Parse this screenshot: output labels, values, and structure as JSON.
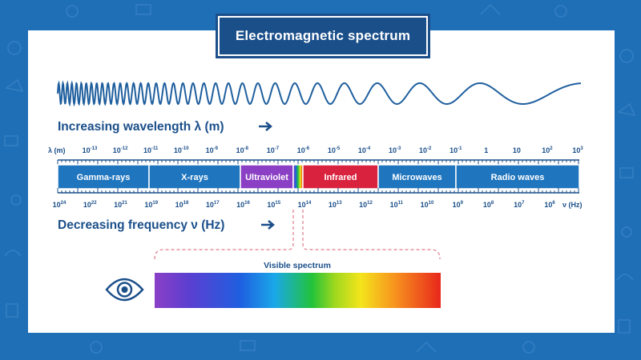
{
  "title": "Electromagnetic spectrum",
  "wavelength_heading": "Increasing wavelength  λ (m)",
  "frequency_heading": "Decreasing frequency  ν (Hz)",
  "wavelength_axis_label": "λ (m)",
  "frequency_axis_label": "ν (Hz)",
  "wavelength_ticks": [
    {
      "base": "10",
      "exp": "-13"
    },
    {
      "base": "10",
      "exp": "-12"
    },
    {
      "base": "10",
      "exp": "-11"
    },
    {
      "base": "10",
      "exp": "-10"
    },
    {
      "base": "10",
      "exp": "-9"
    },
    {
      "base": "10",
      "exp": "-8"
    },
    {
      "base": "10",
      "exp": "-7"
    },
    {
      "base": "10",
      "exp": "-6"
    },
    {
      "base": "10",
      "exp": "-5"
    },
    {
      "base": "10",
      "exp": "-4"
    },
    {
      "base": "10",
      "exp": "-3"
    },
    {
      "base": "10",
      "exp": "-2"
    },
    {
      "base": "10",
      "exp": "-1"
    },
    {
      "base": "1",
      "exp": ""
    },
    {
      "base": "10",
      "exp": ""
    },
    {
      "base": "10",
      "exp": "2"
    },
    {
      "base": "10",
      "exp": "3"
    }
  ],
  "frequency_ticks": [
    {
      "base": "10",
      "exp": "24"
    },
    {
      "base": "10",
      "exp": "22"
    },
    {
      "base": "10",
      "exp": "21"
    },
    {
      "base": "10",
      "exp": "19"
    },
    {
      "base": "10",
      "exp": "18"
    },
    {
      "base": "10",
      "exp": "17"
    },
    {
      "base": "10",
      "exp": "16"
    },
    {
      "base": "10",
      "exp": "15"
    },
    {
      "base": "10",
      "exp": "14"
    },
    {
      "base": "10",
      "exp": "13"
    },
    {
      "base": "10",
      "exp": "12"
    },
    {
      "base": "10",
      "exp": "11"
    },
    {
      "base": "10",
      "exp": "10"
    },
    {
      "base": "10",
      "exp": "9"
    },
    {
      "base": "10",
      "exp": "8"
    },
    {
      "base": "10",
      "exp": "7"
    },
    {
      "base": "10",
      "exp": "6"
    }
  ],
  "bands": [
    {
      "label": "Gamma-rays",
      "color": "#1f75be"
    },
    {
      "label": "X-rays",
      "color": "#1f75be"
    },
    {
      "label": "Ultraviolet",
      "color": "#8a3fc4"
    },
    {
      "label": "",
      "color": "rainbow"
    },
    {
      "label": "Infrared",
      "color": "#d9233e"
    },
    {
      "label": "Microwaves",
      "color": "#1f75be"
    },
    {
      "label": "Radio waves",
      "color": "#1f75be"
    }
  ],
  "visible_label": "Visible spectrum",
  "colors": {
    "background": "#1f6fb7",
    "navy": "#1b4f8a",
    "band_blue": "#1f75be",
    "ultraviolet": "#8a3fc4",
    "infrared": "#d9233e",
    "dashed": "#e07a8a"
  },
  "icons": {
    "eye": "eye-icon",
    "arrow": "right-arrow-icon"
  }
}
